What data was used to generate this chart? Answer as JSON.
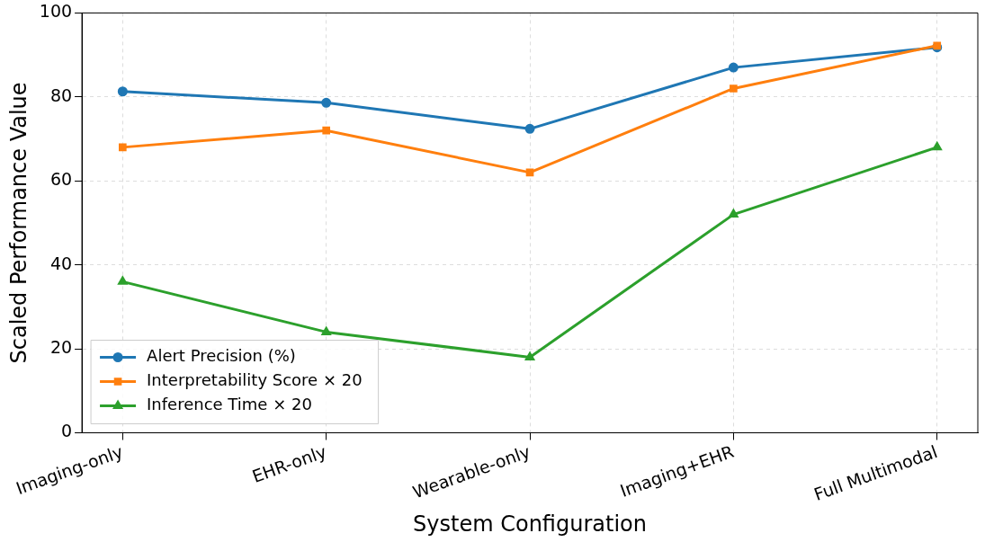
{
  "chart_data": {
    "type": "line",
    "xlabel": "System Configuration",
    "ylabel": "Scaled Performance Value",
    "categories": [
      "Imaging-only",
      "EHR-only",
      "Wearable-only",
      "Imaging+EHR",
      "Full Multimodal"
    ],
    "series": [
      {
        "name": "Alert Precision (%)",
        "color": "#1f77b4",
        "marker": "circle",
        "values": [
          81.3,
          78.6,
          72.4,
          87.0,
          91.8
        ]
      },
      {
        "name": "Interpretability Score × 20",
        "color": "#ff7f0e",
        "marker": "square",
        "values": [
          68,
          72,
          62,
          82,
          92.2
        ]
      },
      {
        "name": "Inference Time × 20",
        "color": "#2ca02c",
        "marker": "triangle",
        "values": [
          36,
          24,
          18,
          52,
          68
        ]
      }
    ],
    "ylim": [
      0,
      100
    ],
    "yticks": [
      0,
      20,
      40,
      60,
      80,
      100
    ],
    "grid": true,
    "line_style": "solid",
    "legend": "bottom left"
  }
}
